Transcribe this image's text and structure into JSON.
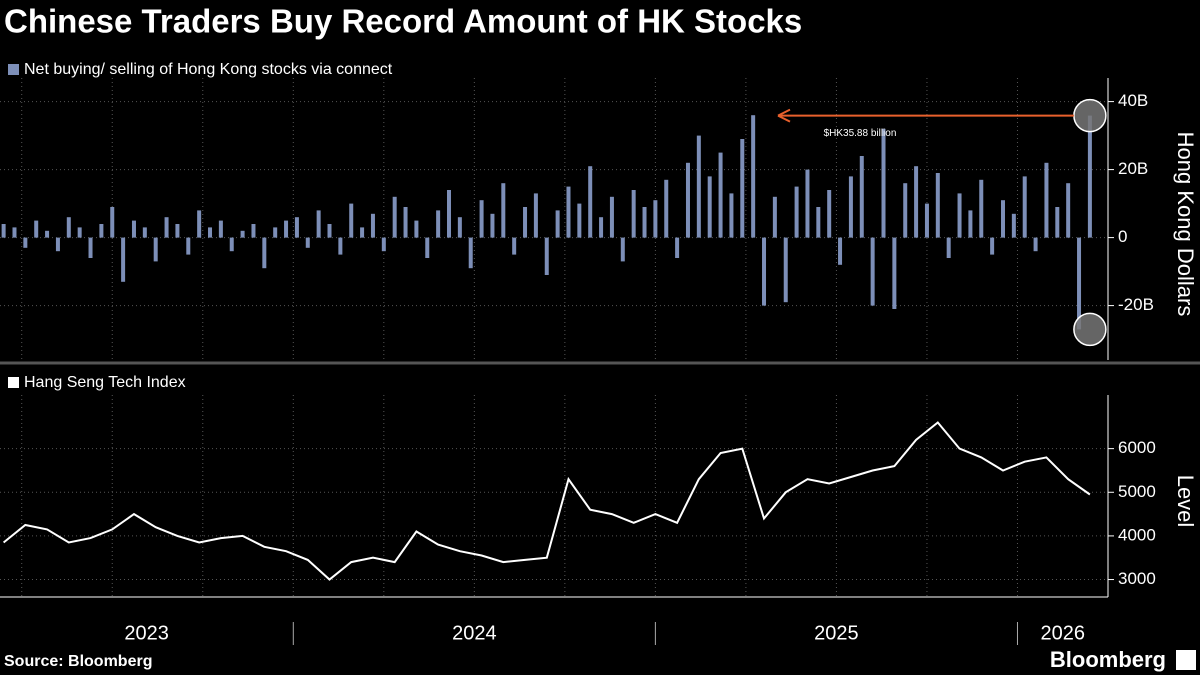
{
  "title": "Chinese Traders Buy Record Amount of HK Stocks",
  "source": "Source: Bloomberg",
  "logo": "Bloomberg",
  "chart_data": [
    {
      "type": "bar",
      "y_label": "Hong Kong Dollars",
      "annotation": "$HK35.88 billion",
      "xlim": [
        2023.19,
        2026.25
      ],
      "ylim": [
        -36,
        44
      ],
      "yticks": [
        {
          "value": 40,
          "label": "40B"
        },
        {
          "value": 20,
          "label": "20B"
        },
        0,
        {
          "value": -20,
          "label": "-20B"
        }
      ],
      "x": [
        2023.2,
        2023.23,
        2023.26,
        2023.29,
        2023.32,
        2023.35,
        2023.38,
        2023.41,
        2023.44,
        2023.47,
        2023.5,
        2023.53,
        2023.56,
        2023.59,
        2023.62,
        2023.65,
        2023.68,
        2023.71,
        2023.74,
        2023.77,
        2023.8,
        2023.83,
        2023.86,
        2023.89,
        2023.92,
        2023.95,
        2023.98,
        2024.01,
        2024.04,
        2024.07,
        2024.1,
        2024.13,
        2024.16,
        2024.19,
        2024.22,
        2024.25,
        2024.28,
        2024.31,
        2024.34,
        2024.37,
        2024.4,
        2024.43,
        2024.46,
        2024.49,
        2024.52,
        2024.55,
        2024.58,
        2024.61,
        2024.64,
        2024.67,
        2024.7,
        2024.73,
        2024.76,
        2024.79,
        2024.82,
        2024.85,
        2024.88,
        2024.91,
        2024.94,
        2024.97,
        2025.0,
        2025.03,
        2025.06,
        2025.09,
        2025.12,
        2025.15,
        2025.18,
        2025.21,
        2025.24,
        2025.27,
        2025.3,
        2025.33,
        2025.36,
        2025.39,
        2025.42,
        2025.45,
        2025.48,
        2025.51,
        2025.54,
        2025.57,
        2025.6,
        2025.63,
        2025.66,
        2025.69,
        2025.72,
        2025.75,
        2025.78,
        2025.81,
        2025.84,
        2025.87,
        2025.9,
        2025.93,
        2025.96,
        2025.99,
        2026.02,
        2026.05,
        2026.08,
        2026.11,
        2026.14,
        2026.17,
        2026.2
      ],
      "series": [
        {
          "name": "Net buying/ selling of Hong Kong stocks via connect",
          "color": "#7d8fb8",
          "values": [
            4,
            3,
            -3,
            5,
            2,
            -4,
            6,
            3,
            -6,
            4,
            9,
            -13,
            5,
            3,
            -7,
            6,
            4,
            -5,
            8,
            3,
            5,
            -4,
            2,
            4,
            -9,
            3,
            5,
            6,
            -3,
            8,
            4,
            -5,
            10,
            3,
            7,
            -4,
            12,
            9,
            5,
            -6,
            8,
            14,
            6,
            -9,
            11,
            7,
            16,
            -5,
            9,
            13,
            -11,
            8,
            15,
            10,
            21,
            6,
            12,
            -7,
            14,
            9,
            11,
            17,
            -6,
            22,
            30,
            18,
            25,
            13,
            29,
            36,
            -20,
            12,
            -19,
            15,
            20,
            9,
            14,
            -8,
            18,
            24,
            -20,
            32,
            -21,
            16,
            21,
            10,
            19,
            -6,
            13,
            8,
            17,
            -5,
            11,
            7,
            18,
            -4,
            22,
            9,
            16,
            -27,
            35.88
          ]
        }
      ]
    },
    {
      "type": "line",
      "y_label": "Level",
      "xlim": [
        2023.19,
        2026.25
      ],
      "xticks": [
        2023.25,
        2023.5,
        2023.75,
        2024,
        2024.25,
        2024.5,
        2024.75,
        2025,
        2025.25,
        2025.5,
        2025.75,
        2026
      ],
      "x_labels": [
        "2023",
        "2024",
        "2025",
        "2026"
      ],
      "ylim": [
        2600,
        7000
      ],
      "yticks": [
        3000,
        4000,
        5000,
        6000
      ],
      "x": [
        2023.2,
        2023.26,
        2023.32,
        2023.38,
        2023.44,
        2023.5,
        2023.56,
        2023.62,
        2023.68,
        2023.74,
        2023.8,
        2023.86,
        2023.92,
        2023.98,
        2024.04,
        2024.1,
        2024.16,
        2024.22,
        2024.28,
        2024.34,
        2024.4,
        2024.46,
        2024.52,
        2024.58,
        2024.64,
        2024.7,
        2024.76,
        2024.82,
        2024.88,
        2024.94,
        2025.0,
        2025.06,
        2025.12,
        2025.18,
        2025.24,
        2025.3,
        2025.36,
        2025.42,
        2025.48,
        2025.54,
        2025.6,
        2025.66,
        2025.72,
        2025.78,
        2025.84,
        2025.9,
        2025.96,
        2026.02,
        2026.08,
        2026.14,
        2026.2
      ],
      "series": [
        {
          "name": "Hang Seng Tech Index",
          "color": "#ffffff",
          "values": [
            3850,
            4250,
            4150,
            3850,
            3950,
            4150,
            4500,
            4200,
            4000,
            3850,
            3950,
            4000,
            3750,
            3650,
            3450,
            3000,
            3400,
            3500,
            3400,
            4100,
            3800,
            3650,
            3550,
            3400,
            3450,
            3500,
            5300,
            4600,
            4500,
            4300,
            4500,
            4300,
            5300,
            5900,
            6000,
            4400,
            5000,
            5300,
            5200,
            5350,
            5500,
            5600,
            6200,
            6600,
            6000,
            5800,
            5500,
            5700,
            5800,
            5300,
            4950
          ]
        }
      ]
    }
  ]
}
